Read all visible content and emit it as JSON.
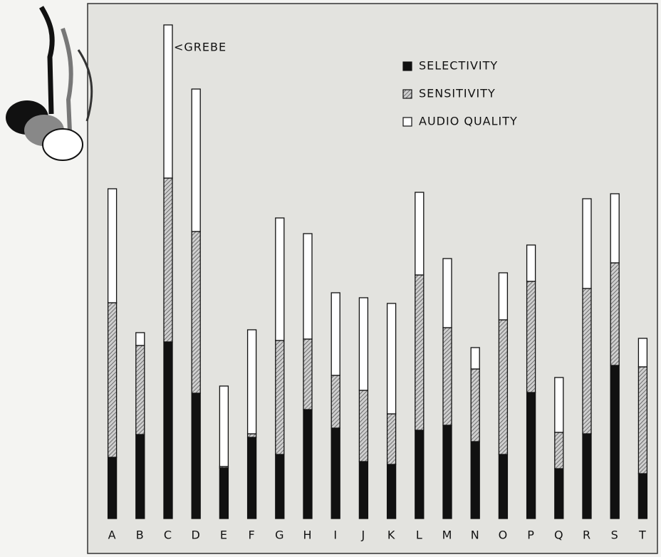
{
  "chart_data": {
    "type": "stacked-bar",
    "annotation": "<GREBE",
    "categories": [
      "A",
      "B",
      "C",
      "D",
      "E",
      "F",
      "G",
      "H",
      "I",
      "J",
      "K",
      "L",
      "M",
      "N",
      "O",
      "P",
      "Q",
      "R",
      "S",
      "T"
    ],
    "series": [
      {
        "name": "SELECTIVITY",
        "color": "#111111",
        "values": [
          86,
          118,
          248,
          176,
          71,
          114,
          90,
          153,
          127,
          80,
          76,
          124,
          131,
          108,
          90,
          177,
          70,
          119,
          215,
          63
        ]
      },
      {
        "name": "SENSITIVITY",
        "color": "#8a8a8a",
        "values": [
          217,
          125,
          230,
          227,
          2,
          5,
          160,
          99,
          74,
          100,
          71,
          218,
          137,
          102,
          189,
          156,
          51,
          204,
          144,
          150
        ]
      },
      {
        "name": "AUDIO QUALITY",
        "color": "#ffffff",
        "values": [
          160,
          18,
          215,
          200,
          113,
          146,
          172,
          148,
          116,
          130,
          155,
          116,
          97,
          30,
          66,
          51,
          77,
          126,
          97,
          40
        ]
      }
    ],
    "ylim": [
      0,
      700
    ],
    "legend": "top-right"
  }
}
